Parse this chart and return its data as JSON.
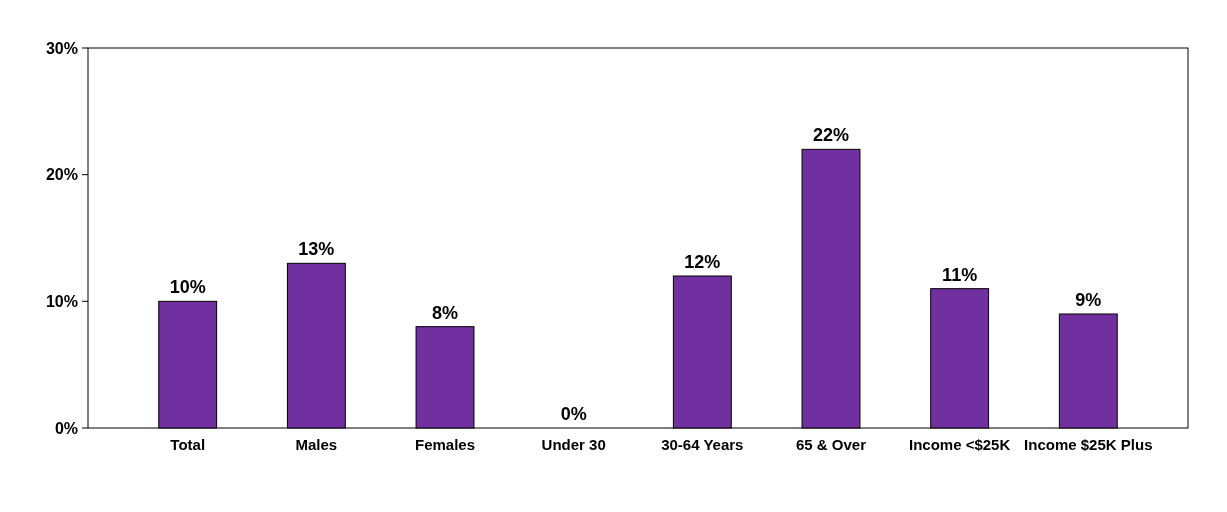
{
  "chart_data": {
    "type": "bar",
    "categories": [
      "Total",
      "Males",
      "Females",
      "Under 30",
      "30-64 Years",
      "65 & Over",
      "Income <$25K",
      "Income $25K Plus"
    ],
    "values": [
      10,
      13,
      8,
      0,
      12,
      22,
      11,
      9
    ],
    "color": "#7030a0",
    "ylim": [
      0,
      30
    ],
    "yticks": [
      {
        "value": 0,
        "label": "0%"
      },
      {
        "value": 10,
        "label": "10%"
      },
      {
        "value": 20,
        "label": "20%"
      },
      {
        "value": 30,
        "label": "30%"
      }
    ],
    "value_labels": [
      "10%",
      "13%",
      "8%",
      "0%",
      "12%",
      "22%",
      "11%",
      "9%"
    ],
    "grid": false
  }
}
